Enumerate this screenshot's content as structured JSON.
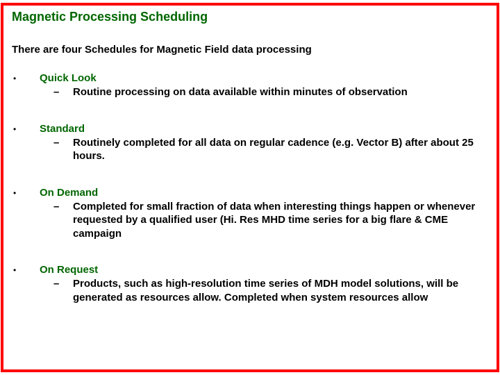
{
  "title": "Magnetic Processing Scheduling",
  "intro": "There are four Schedules for Magnetic Field data processing",
  "colors": {
    "border": "#ff0000",
    "heading": "#006600",
    "body_text": "#000000",
    "background": "#ffffff"
  },
  "typography": {
    "title_fontsize": 18,
    "intro_fontsize": 15,
    "bullet_title_fontsize": 15,
    "sub_fontsize": 15,
    "font_family": "Arial",
    "weight": "bold"
  },
  "bullets": [
    {
      "title": "Quick Look",
      "sub": "Routine processing on data available within minutes of observation"
    },
    {
      "title": "Standard",
      "sub": "Routinely completed for all data on regular cadence (e.g. Vector B) after about 25 hours."
    },
    {
      "title": "On Demand",
      "sub": "Completed for small fraction of data when interesting things happen or whenever requested by a qualified user (Hi. Res MHD time series for a big flare & CME campaign"
    },
    {
      "title": "On Request",
      "sub": "Products, such as high-resolution time series of MDH model solutions, will be generated as resources allow. Completed when system resources allow"
    }
  ]
}
